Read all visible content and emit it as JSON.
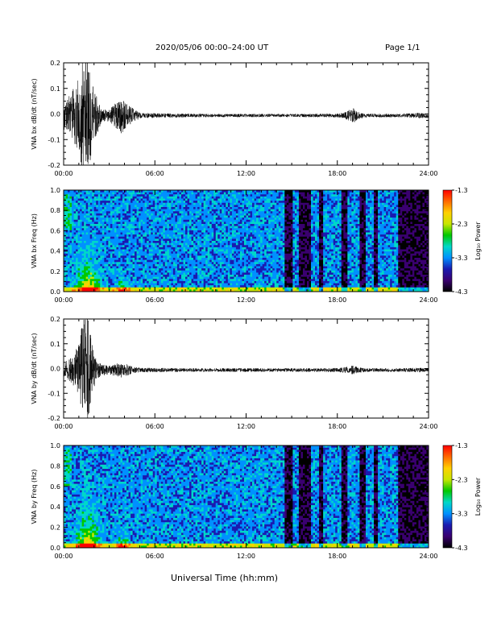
{
  "header": {
    "date_range": "2020/05/06  00:00–24:00 UT",
    "page": "Page 1/1"
  },
  "xlabel": "Universal Time (hh:mm)",
  "colorbar": {
    "label": "Log₁₀ Power",
    "ticks": [
      "-1.3",
      "-2.3",
      "-3.3",
      "-4.3"
    ],
    "range": [
      -4.3,
      -1.3
    ],
    "colors": [
      "#000000",
      "#3a0070",
      "#1a1ab0",
      "#0090ff",
      "#00d8c8",
      "#00c800",
      "#c8e600",
      "#ffd000",
      "#ff6a00",
      "#ff0000"
    ]
  },
  "chart_data": [
    {
      "type": "line",
      "ylabel": "VNA bx dB/dt (nT/sec)",
      "xlim": [
        0,
        24
      ],
      "ylim": [
        -0.2,
        0.2
      ],
      "yticks": [
        "0.2",
        "0.1",
        "0.0",
        "-0.1",
        "-0.2"
      ],
      "xticks": [
        "00:00",
        "06:00",
        "12:00",
        "18:00",
        "24:00"
      ],
      "envelope": {
        "hours": [
          0.0,
          0.5,
          1.0,
          1.3,
          1.6,
          1.9,
          2.2,
          2.5,
          3.0,
          3.5,
          3.8,
          4.2,
          4.6,
          5.0,
          6.0,
          8.0,
          10.0,
          12.0,
          14.0,
          16.0,
          18.0,
          18.7,
          19.0,
          19.4,
          20.0,
          22.0,
          23.5,
          24.0
        ],
        "amplitude": [
          0.06,
          0.1,
          0.16,
          0.26,
          0.26,
          0.14,
          0.08,
          0.03,
          0.025,
          0.06,
          0.08,
          0.05,
          0.03,
          0.012,
          0.01,
          0.008,
          0.007,
          0.007,
          0.007,
          0.007,
          0.008,
          0.02,
          0.035,
          0.015,
          0.008,
          0.007,
          0.012,
          0.01
        ]
      }
    },
    {
      "type": "heatmap",
      "ylabel": "VNA bx Freq (Hz)",
      "xlim": [
        0,
        24
      ],
      "ylim": [
        0,
        1.0
      ],
      "yticks": [
        "1.0",
        "0.8",
        "0.6",
        "0.4",
        "0.2",
        "0.0"
      ],
      "xticks": [
        "00:00",
        "06:00",
        "12:00",
        "18:00",
        "24:00"
      ],
      "zlim": [
        -4.3,
        -1.3
      ]
    },
    {
      "type": "line",
      "ylabel": "VNA by dB/dt (nT/sec)",
      "xlim": [
        0,
        24
      ],
      "ylim": [
        -0.2,
        0.2
      ],
      "yticks": [
        "0.2",
        "0.1",
        "0.0",
        "-0.1",
        "-0.2"
      ],
      "xticks": [
        "00:00",
        "06:00",
        "12:00",
        "18:00",
        "24:00"
      ],
      "envelope": {
        "hours": [
          0.0,
          0.5,
          1.0,
          1.3,
          1.6,
          1.9,
          2.2,
          2.5,
          3.0,
          3.5,
          3.8,
          4.2,
          4.6,
          5.0,
          6.0,
          8.0,
          10.0,
          12.0,
          14.0,
          16.0,
          18.0,
          18.7,
          19.0,
          19.4,
          20.0,
          22.0,
          23.5,
          24.0
        ],
        "amplitude": [
          0.03,
          0.06,
          0.12,
          0.25,
          0.25,
          0.1,
          0.04,
          0.025,
          0.02,
          0.03,
          0.035,
          0.025,
          0.015,
          0.01,
          0.01,
          0.008,
          0.008,
          0.008,
          0.008,
          0.008,
          0.009,
          0.015,
          0.02,
          0.012,
          0.008,
          0.008,
          0.01,
          0.008
        ]
      }
    },
    {
      "type": "heatmap",
      "ylabel": "VNA by Freq (Hz)",
      "xlim": [
        0,
        24
      ],
      "ylim": [
        0,
        1.0
      ],
      "yticks": [
        "1.0",
        "0.8",
        "0.6",
        "0.4",
        "0.2",
        "0.0"
      ],
      "xticks": [
        "00:00",
        "06:00",
        "12:00",
        "18:00",
        "24:00"
      ],
      "zlim": [
        -4.3,
        -1.3
      ]
    }
  ]
}
